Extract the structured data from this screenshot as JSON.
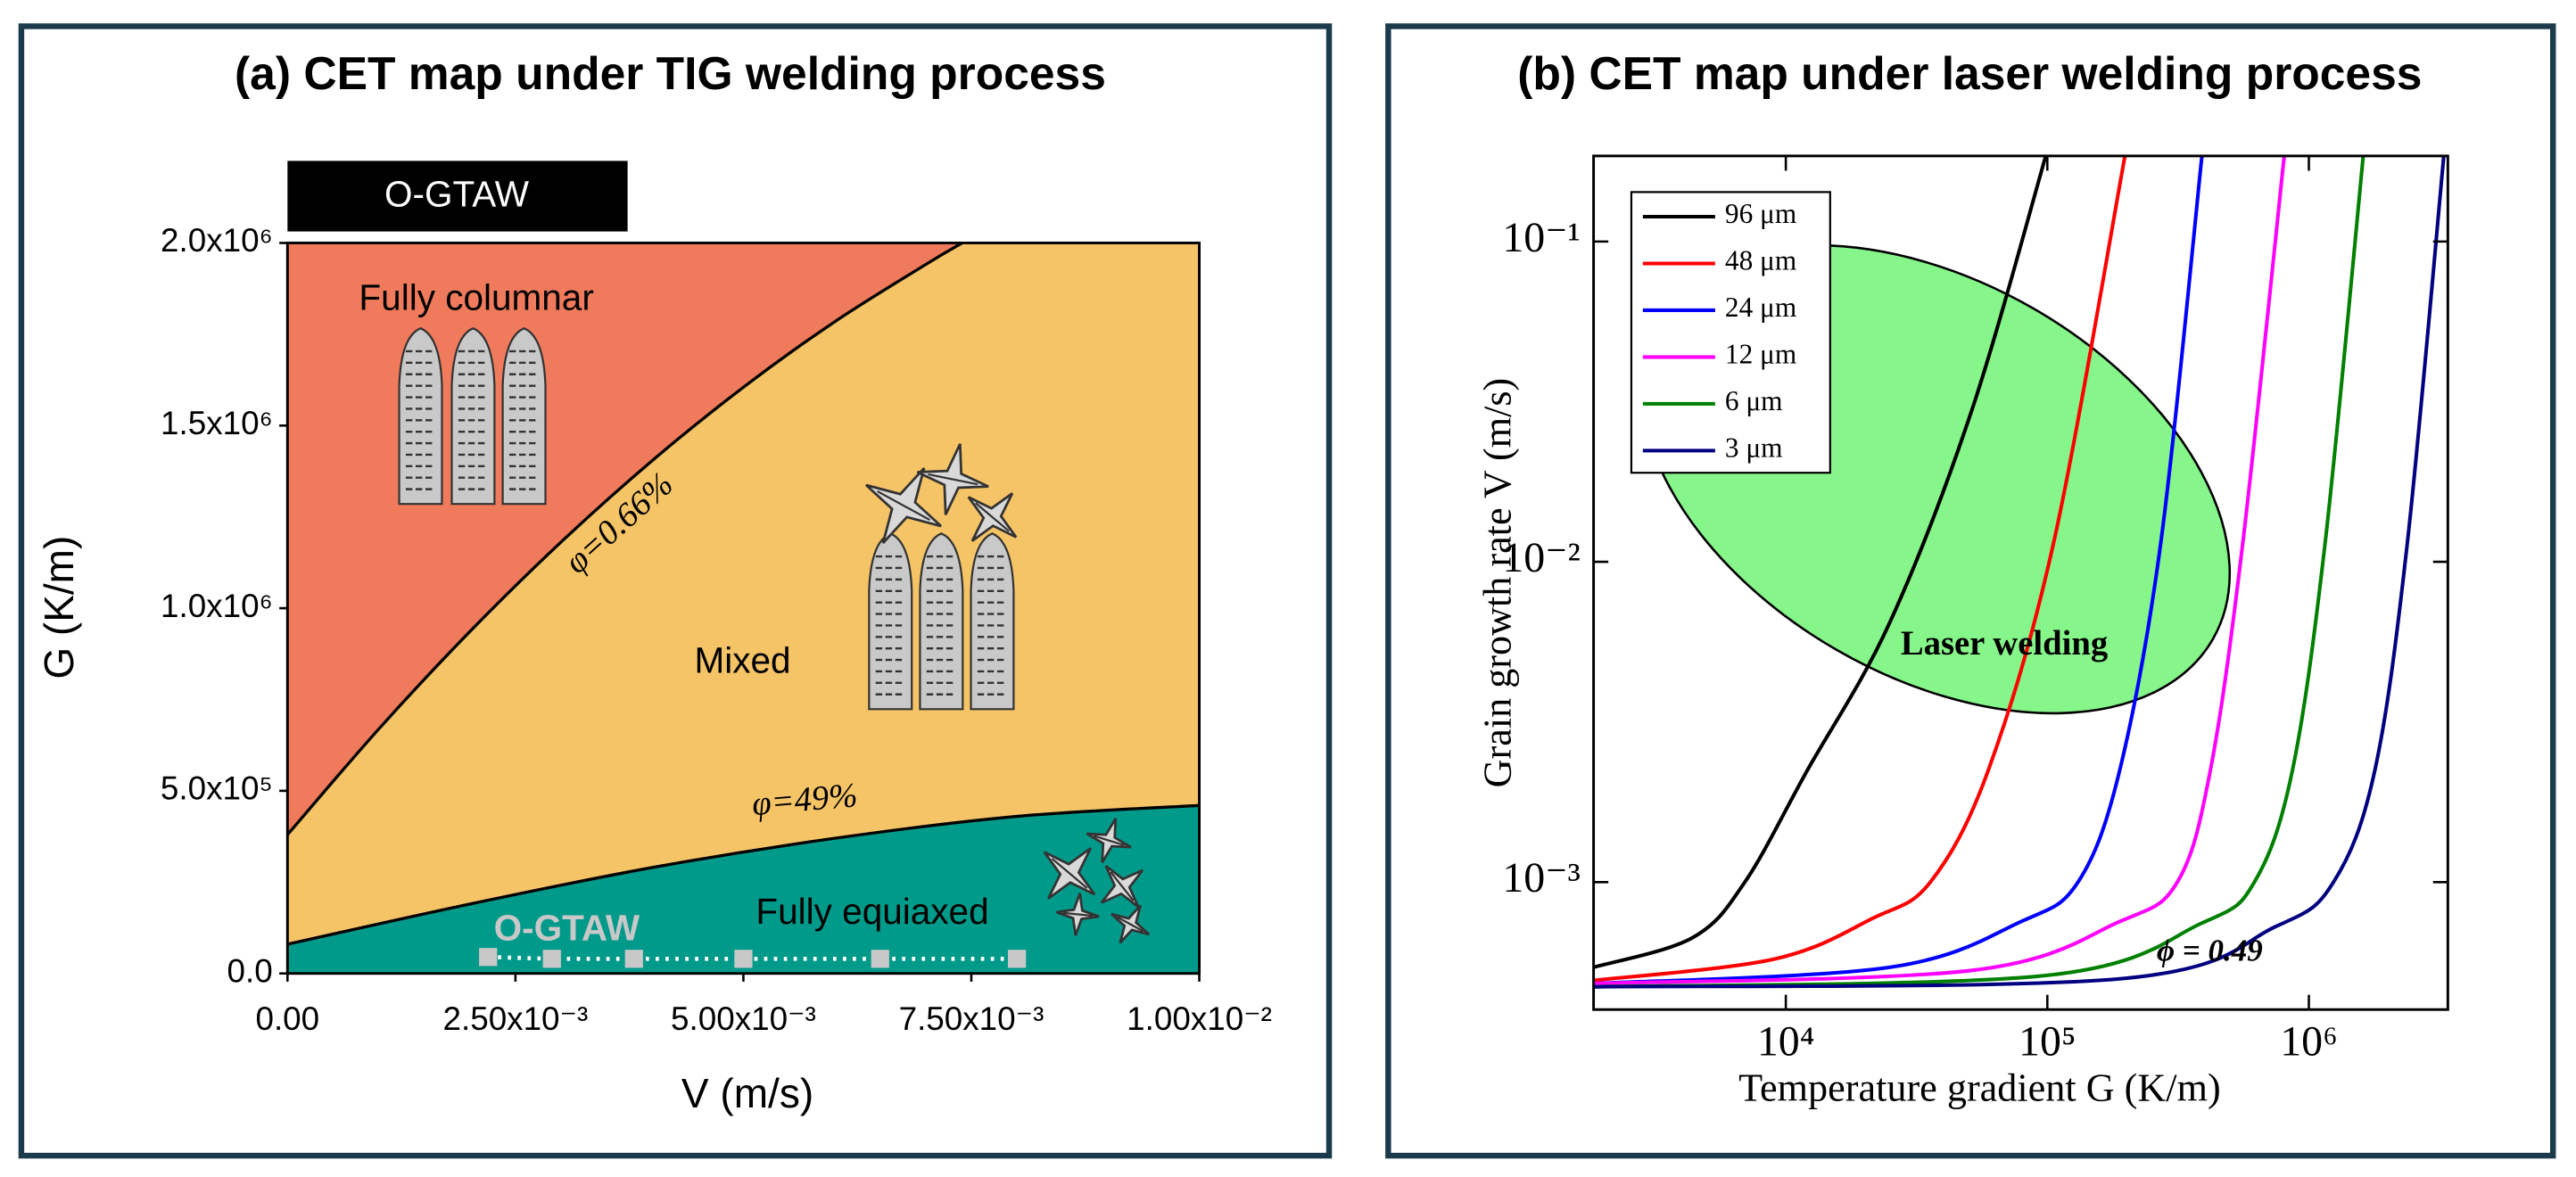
{
  "chart_data": [
    {
      "type": "area",
      "title": "(a) CET map under TIG welding process",
      "x_label": "V (m/s)",
      "y_label": "G (K/m)",
      "xlim": [
        0,
        0.01
      ],
      "xticks": [
        {
          "value": 0,
          "label": "0.00"
        },
        {
          "value": 0.0025,
          "label": "2.50x10⁻³"
        },
        {
          "value": 0.005,
          "label": "5.00x10⁻³"
        },
        {
          "value": 0.0075,
          "label": "7.50x10⁻³"
        },
        {
          "value": 0.01,
          "label": "1.00x10⁻²"
        }
      ],
      "ylim": [
        0,
        2000000
      ],
      "yticks": [
        {
          "value": 0,
          "label": "0.0"
        },
        {
          "value": 500000,
          "label": "5.0x10⁵"
        },
        {
          "value": 1000000,
          "label": "1.0x10⁶"
        },
        {
          "value": 1500000,
          "label": "1.5x10⁶"
        },
        {
          "value": 2000000,
          "label": "2.0x10⁶"
        }
      ],
      "box_label": "O-GTAW",
      "series": [
        {
          "name": "φ=0.66%",
          "color": "#000000",
          "x": [
            0,
            0.001,
            0.002,
            0.003,
            0.004,
            0.005,
            0.006,
            0.007,
            0.0074
          ],
          "values": [
            380000,
            669000,
            936000,
            1181000,
            1404000,
            1605000,
            1784000,
            1941000,
            2000000
          ]
        },
        {
          "name": "φ=49%",
          "color": "#000000",
          "x": [
            0,
            0.002,
            0.004,
            0.006,
            0.008,
            0.01
          ],
          "values": [
            80000,
            190000,
            290000,
            370000,
            430000,
            460000
          ]
        }
      ],
      "regions": [
        {
          "label": "Fully columnar",
          "color": "#f07a5c"
        },
        {
          "label": "Mixed",
          "color": "#f5c466"
        },
        {
          "label": "Fully equiaxed",
          "color": "#009a8a"
        }
      ],
      "points": {
        "name": "O-GTAW",
        "color": "#c8c8c8",
        "x": [
          0.0022,
          0.0029,
          0.0038,
          0.005,
          0.0065,
          0.008
        ],
        "values": [
          45000,
          40000,
          40000,
          40000,
          40000,
          40000
        ]
      }
    },
    {
      "type": "line",
      "title": "(b) CET map under laser welding process",
      "x_label": "Temperature gradient G (K/m)",
      "y_label": "Grain growth rate V (m/s)",
      "xscale": "log",
      "yscale": "log",
      "xlim": [
        1840,
        3400000
      ],
      "xticks": [
        {
          "value": 10000,
          "label": "10⁴"
        },
        {
          "value": 100000,
          "label": "10⁵"
        },
        {
          "value": 1000000,
          "label": "10⁶"
        }
      ],
      "ylim": [
        0.0004,
        0.185
      ],
      "yticks": [
        {
          "value": 0.001,
          "label": "10⁻³"
        },
        {
          "value": 0.01,
          "label": "10⁻²"
        },
        {
          "value": 0.1,
          "label": "10⁻¹"
        }
      ],
      "region": {
        "label": "Laser welding",
        "color": "#86f58a"
      },
      "annotation": "ϕ = 0.49",
      "series": [
        {
          "name": "96 μm",
          "color": "#000000",
          "x": [
            1840,
            4390,
            6970,
            12070,
            24900,
            51400,
            98600
          ],
          "values": [
            0.000542,
            0.00067,
            0.001,
            0.00223,
            0.00643,
            0.0297,
            0.185
          ]
        },
        {
          "name": "48 μm",
          "color": "#ff0000",
          "x": [
            1840,
            9030,
            21500,
            35700,
            59400,
            106000,
            198000
          ],
          "values": [
            0.000493,
            0.000575,
            0.000771,
            0.001,
            0.00223,
            0.0116,
            0.185
          ]
        },
        {
          "name": "24 μm",
          "color": "#0000ff",
          "x": [
            1840,
            24900,
            79300,
            131000,
            189000,
            272000,
            390000
          ],
          "values": [
            0.000482,
            0.000542,
            0.000753,
            0.001,
            0.00223,
            0.0116,
            0.185
          ]
        },
        {
          "name": "12 μm",
          "color": "#ff00ff",
          "x": [
            1840,
            51400,
            189000,
            314000,
            420000,
            560000,
            805000
          ],
          "values": [
            0.000482,
            0.00053,
            0.000753,
            0.001,
            0.00223,
            0.0116,
            0.185
          ]
        },
        {
          "name": "6 μm",
          "color": "#008000",
          "x": [
            1840,
            98600,
            390000,
            619000,
            865000,
            1156000,
            1614000
          ],
          "values": [
            0.000471,
            0.000511,
            0.000745,
            0.001,
            0.00223,
            0.0116,
            0.185
          ]
        },
        {
          "name": "3 μm",
          "color": "#000080",
          "x": [
            1840,
            189000,
            748000,
            1242000,
            1787000,
            2384000,
            3280000
          ],
          "values": [
            0.000471,
            0.000499,
            0.000727,
            0.001,
            0.00223,
            0.0116,
            0.185
          ]
        }
      ]
    }
  ]
}
